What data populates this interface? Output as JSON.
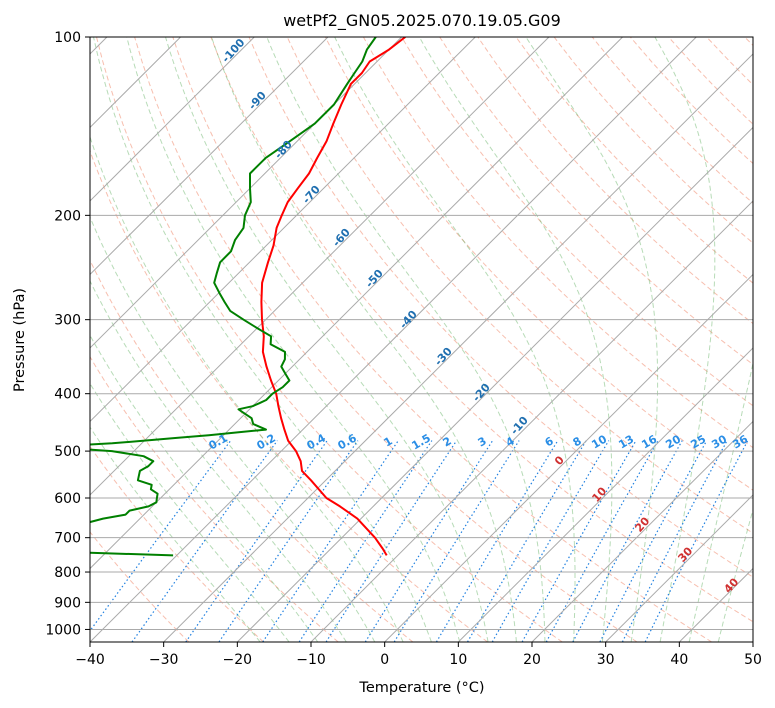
{
  "chart_data": {
    "type": "skew-t",
    "title": "wetPf2_GN05.2025.070.19.05.G09",
    "xlabel": "Temperature (°C)",
    "ylabel": "Pressure (hPa)",
    "xlim": [
      -40,
      50
    ],
    "ylim": [
      1050,
      100
    ],
    "y_scale": "log",
    "grid": true,
    "x_ticks": [
      "−40",
      "−30",
      "−20",
      "−10",
      "0",
      "10",
      "20",
      "30",
      "40",
      "50"
    ],
    "y_ticks": [
      "100",
      "200",
      "300",
      "400",
      "500",
      "600",
      "700",
      "800",
      "900",
      "1000"
    ],
    "dry_adiabat_labels": [
      "-100",
      "-90",
      "-80",
      "-70",
      "-60",
      "-50",
      "-40",
      "-30",
      "-20",
      "-10",
      "0",
      "10",
      "20",
      "30",
      "40"
    ],
    "mixing_ratio_labels": [
      "0.1",
      "0.2",
      "0.4",
      "0.6",
      "1",
      "1.5",
      "2",
      "3",
      "4",
      "6",
      "8",
      "10",
      "13",
      "16",
      "20",
      "25",
      "30",
      "36"
    ],
    "series": [
      {
        "color": "#ff0000",
        "pressure": [
          750,
          730,
          700,
          650,
          620,
          600,
          560,
          540,
          520,
          500,
          480,
          460,
          440,
          420,
          400,
          380,
          360,
          340,
          320,
          300,
          280,
          260,
          240,
          225,
          210,
          200,
          190,
          180,
          170,
          160,
          150,
          140,
          130,
          120,
          115,
          110,
          105,
          100
        ],
        "temperature": [
          -11.5,
          -13.0,
          -15.5,
          -20.5,
          -24.5,
          -27.5,
          -32.0,
          -34.5,
          -36.0,
          -38.0,
          -40.5,
          -42.5,
          -44.5,
          -46.5,
          -48.5,
          -51.0,
          -53.5,
          -56.0,
          -58.0,
          -60.5,
          -63.0,
          -65.5,
          -67.5,
          -69.0,
          -71.0,
          -72.0,
          -73.0,
          -73.5,
          -74.0,
          -75.0,
          -76.0,
          -77.5,
          -79.0,
          -80.5,
          -80.5,
          -81.0,
          -80.0,
          -79.5
        ]
      },
      {
        "color": "#008000",
        "pressure": [
          750,
          735,
          733,
          733,
          730,
          720,
          715,
          710,
          690,
          685,
          680,
          670,
          660,
          650,
          640,
          630,
          620,
          610,
          600,
          590,
          580,
          570,
          560,
          550,
          540,
          530,
          520,
          510,
          500,
          495,
          490,
          485,
          480,
          475,
          470,
          465,
          460,
          450,
          440,
          430,
          425,
          420,
          415,
          410,
          400,
          390,
          380,
          370,
          360,
          350,
          340,
          330,
          320,
          310,
          300,
          290,
          280,
          270,
          260,
          250,
          240,
          230,
          220,
          210,
          200,
          190,
          180,
          170,
          160,
          150,
          140,
          130,
          120,
          115,
          110,
          105,
          100
        ],
        "temperature": [
          -40.5,
          -63.0,
          -66.0,
          -64.5,
          -60.0,
          -54.5,
          -55.0,
          -58.0,
          -61.0,
          -63.0,
          -60.0,
          -58.5,
          -56.5,
          -55.0,
          -52.5,
          -52.5,
          -50.5,
          -50.0,
          -50.5,
          -51.0,
          -52.5,
          -53.0,
          -55.5,
          -56.0,
          -56.5,
          -56.0,
          -56.0,
          -58.0,
          -63.0,
          -68.5,
          -70.0,
          -64.0,
          -60.0,
          -56.0,
          -52.0,
          -48.5,
          -45.0,
          -47.5,
          -48.5,
          -50.5,
          -51.5,
          -50.0,
          -49.5,
          -49.0,
          -49.0,
          -48.5,
          -48.5,
          -50.0,
          -51.5,
          -52.0,
          -53.0,
          -56.0,
          -57.0,
          -60.0,
          -63.0,
          -66.0,
          -68.0,
          -70.0,
          -72.0,
          -73.0,
          -74.0,
          -74.0,
          -75.0,
          -75.5,
          -77.0,
          -78.0,
          -80.0,
          -82.0,
          -82.0,
          -81.0,
          -80.0,
          -80.0,
          -81.0,
          -81.5,
          -82.0,
          -83.0,
          -83.5
        ]
      }
    ]
  }
}
